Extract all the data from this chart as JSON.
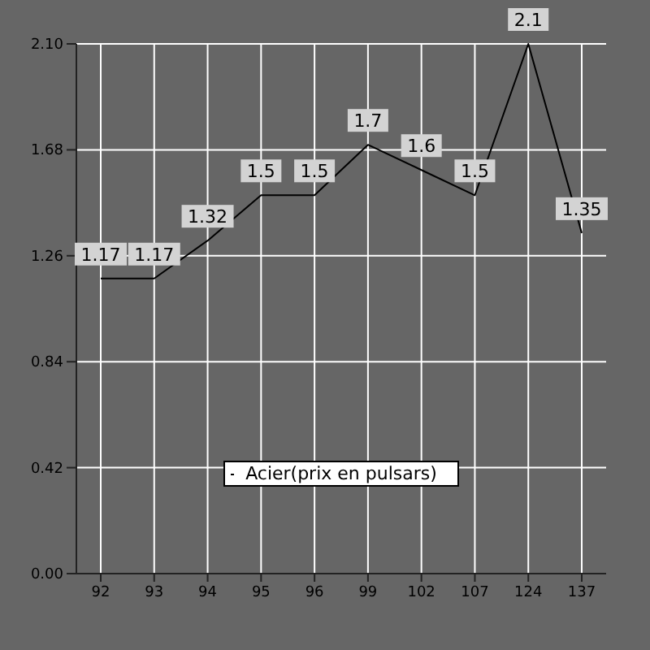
{
  "chart_data": {
    "type": "line",
    "categories": [
      "92",
      "93",
      "94",
      "95",
      "96",
      "99",
      "102",
      "107",
      "124",
      "137"
    ],
    "series": [
      {
        "name": "Acier(prix en pulsars)",
        "color": "#000000",
        "values": [
          1.17,
          1.17,
          1.32,
          1.5,
          1.5,
          1.7,
          1.6,
          1.5,
          2.1,
          1.35
        ]
      }
    ],
    "ylim": [
      0,
      2.1
    ],
    "yticks": [
      {
        "value": 0,
        "label": "0.00"
      },
      {
        "value": 0.42,
        "label": "0.42"
      },
      {
        "value": 0.84,
        "label": "0.84"
      },
      {
        "value": 1.26,
        "label": "1.26"
      },
      {
        "value": 1.68,
        "label": "1.68"
      },
      {
        "value": 2.1,
        "label": "2.10"
      }
    ],
    "grid": true,
    "data_labels": true,
    "legend": "bottom",
    "marker": "none",
    "line_style": "solid"
  }
}
